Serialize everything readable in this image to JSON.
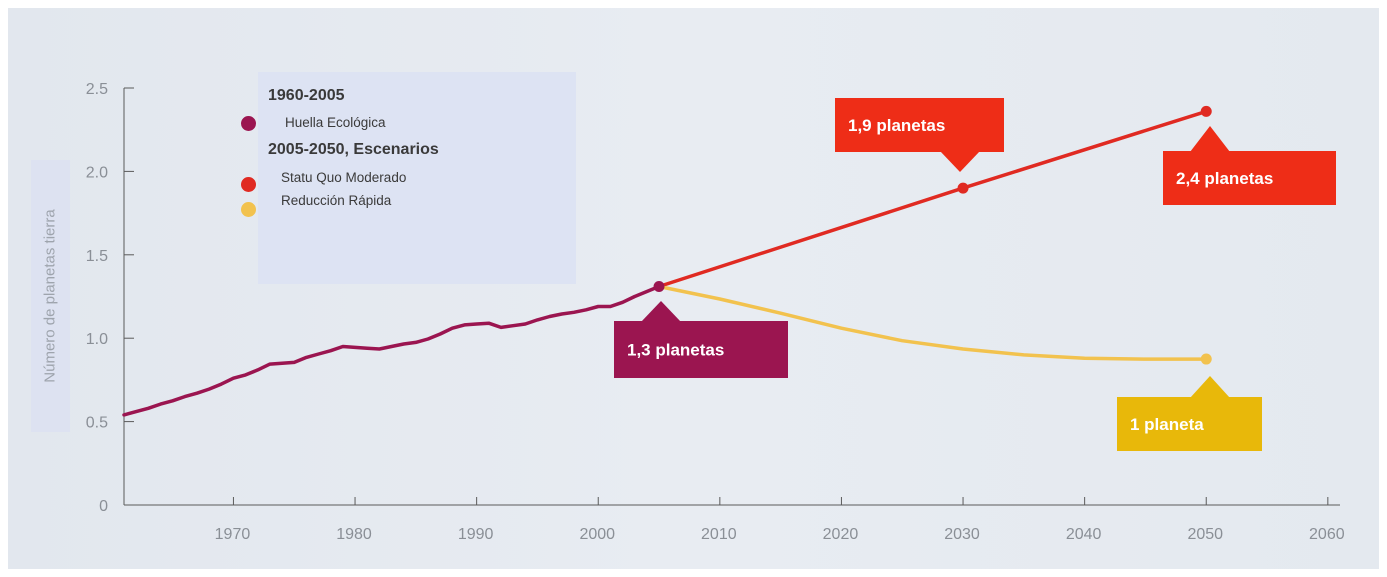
{
  "chart_data": {
    "type": "line",
    "ylabel": "Número de planetas tierra",
    "x_ticks": [
      "1970",
      "1980",
      "1990",
      "2000",
      "2010",
      "2020",
      "2030",
      "2040",
      "2050",
      "2060"
    ],
    "y_ticks": [
      "0",
      "0.5",
      "1.0",
      "1.5",
      "2.0",
      "2.5"
    ],
    "xlim": [
      1961,
      2061
    ],
    "ylim": [
      0,
      2.5
    ],
    "grid": false,
    "legend": {
      "placement": "top-left",
      "group1_title": "1960-2005",
      "group2_title": "2005-2050, Escenarios"
    },
    "series": [
      {
        "name": "Huella Ecológica",
        "color": "#9b1550",
        "x": [
          1961,
          1962,
          1963,
          1964,
          1965,
          1966,
          1967,
          1968,
          1969,
          1970,
          1971,
          1972,
          1973,
          1974,
          1975,
          1976,
          1977,
          1978,
          1979,
          1980,
          1981,
          1982,
          1983,
          1984,
          1985,
          1986,
          1987,
          1988,
          1989,
          1990,
          1991,
          1992,
          1993,
          1994,
          1995,
          1996,
          1997,
          1998,
          1999,
          2000,
          2001,
          2002,
          2003,
          2004,
          2005
        ],
        "y": [
          0.54,
          0.56,
          0.58,
          0.605,
          0.625,
          0.65,
          0.67,
          0.695,
          0.725,
          0.76,
          0.78,
          0.81,
          0.845,
          0.85,
          0.855,
          0.885,
          0.905,
          0.925,
          0.95,
          0.945,
          0.94,
          0.935,
          0.95,
          0.965,
          0.975,
          0.995,
          1.025,
          1.06,
          1.08,
          1.085,
          1.09,
          1.065,
          1.075,
          1.085,
          1.11,
          1.13,
          1.145,
          1.155,
          1.17,
          1.19,
          1.19,
          1.215,
          1.25,
          1.28,
          1.31
        ]
      },
      {
        "name": "Statu Quo Moderado",
        "color": "#e02a22",
        "x": [
          2005,
          2030,
          2050
        ],
        "y": [
          1.31,
          1.9,
          2.36
        ]
      },
      {
        "name": "Reducción Rápida",
        "color": "#f2c24e",
        "x": [
          2005,
          2010,
          2015,
          2020,
          2025,
          2030,
          2035,
          2040,
          2045,
          2050
        ],
        "y": [
          1.31,
          1.235,
          1.15,
          1.06,
          0.985,
          0.935,
          0.9,
          0.88,
          0.875,
          0.875
        ]
      }
    ],
    "markers": [
      {
        "x": 2005,
        "y": 1.31,
        "color": "#9b1550"
      },
      {
        "x": 2030,
        "y": 1.9,
        "color": "#e02a22"
      },
      {
        "x": 2050,
        "y": 2.36,
        "color": "#e02a22"
      },
      {
        "x": 2050,
        "y": 0.875,
        "color": "#f2c24e"
      }
    ],
    "annotations": [
      {
        "text": "1,3 planetas",
        "color": "#9b1550",
        "pointer": "up"
      },
      {
        "text": "1,9 planetas",
        "color": "#ee2d17",
        "pointer": "down"
      },
      {
        "text": "2,4 planetas",
        "color": "#ee2d17",
        "pointer": "up"
      },
      {
        "text": "1 planeta",
        "color": "#e8b80a",
        "pointer": "up"
      }
    ]
  }
}
